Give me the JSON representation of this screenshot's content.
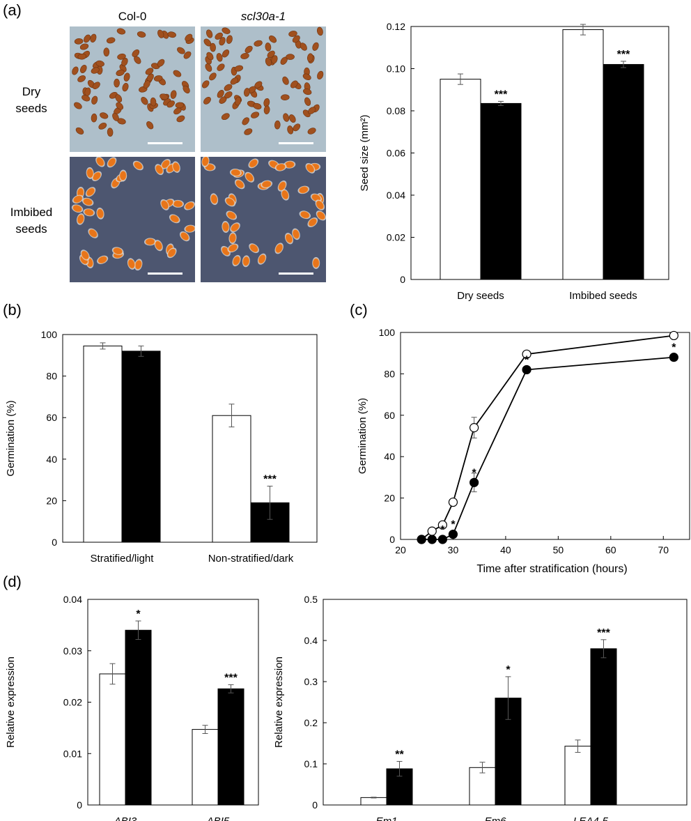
{
  "panel_labels": {
    "a": "(a)",
    "b": "(b)",
    "c": "(c)",
    "d": "(d)"
  },
  "photos": {
    "col_labels": [
      "Col-0",
      "scl30a-1"
    ],
    "row_labels": [
      [
        "Dry",
        "seeds"
      ],
      [
        "Imbibed",
        "seeds"
      ]
    ]
  },
  "chart_data": [
    {
      "id": "a",
      "type": "bar",
      "ylabel": "Seed size (mm²)",
      "xlabel": "",
      "ylim": [
        0,
        0.12
      ],
      "yticks": [
        "0",
        "0.02",
        "0.04",
        "0.06",
        "0.08",
        "0.10",
        "0.12"
      ],
      "categories": [
        "Dry seeds",
        "Imbibed seeds"
      ],
      "series": [
        {
          "values": [
            0.095,
            0.1185
          ],
          "errors": [
            0.0025,
            0.0025
          ],
          "fill": "#ffffff"
        },
        {
          "values": [
            0.0835,
            0.102
          ],
          "errors": [
            0.001,
            0.0015
          ],
          "fill": "#000000"
        }
      ],
      "annotations": [
        "",
        "***",
        "",
        "***"
      ]
    },
    {
      "id": "b",
      "type": "bar",
      "ylabel": "Germination (%)",
      "xlabel": "",
      "ylim": [
        0,
        100
      ],
      "yticks": [
        "0",
        "20",
        "40",
        "60",
        "80",
        "100"
      ],
      "categories": [
        "Stratified/light",
        "Non-stratified/dark"
      ],
      "series": [
        {
          "values": [
            94.5,
            61
          ],
          "errors": [
            1.5,
            5.5
          ],
          "fill": "#ffffff"
        },
        {
          "values": [
            92,
            19
          ],
          "errors": [
            2.5,
            8
          ],
          "fill": "#000000"
        }
      ],
      "annotations": [
        "",
        "",
        "",
        "***"
      ]
    },
    {
      "id": "c",
      "type": "line",
      "ylabel": "Germination (%)",
      "xlabel": "Time after stratification (hours)",
      "xlim": [
        20,
        75
      ],
      "ylim": [
        0,
        100
      ],
      "xticks": [
        "20",
        "30",
        "40",
        "50",
        "60",
        "70"
      ],
      "yticks": [
        "0",
        "20",
        "40",
        "60",
        "80",
        "100"
      ],
      "series": [
        {
          "marker": "open",
          "x": [
            24,
            26,
            28,
            30,
            34,
            44,
            72
          ],
          "y": [
            0,
            4,
            7,
            18,
            54,
            89.5,
            98.5
          ],
          "err": [
            0,
            0,
            0,
            0,
            5,
            0,
            0
          ]
        },
        {
          "marker": "filled",
          "x": [
            24,
            26,
            28,
            30,
            34,
            44,
            72
          ],
          "y": [
            0,
            0,
            0,
            2.5,
            27.5,
            82,
            88
          ],
          "err": [
            0,
            0,
            0,
            0,
            4.5,
            0,
            0
          ],
          "stars": [
            "",
            "",
            "*",
            "*",
            "*",
            "*",
            "*"
          ]
        }
      ]
    },
    {
      "id": "d1",
      "type": "bar",
      "ylabel": "Relative expression",
      "xlabel": "",
      "ylim": [
        0,
        0.04
      ],
      "yticks": [
        "0",
        "0.01",
        "0.02",
        "0.03",
        "0.04"
      ],
      "categories": [
        "ABI3",
        "ABI5"
      ],
      "series": [
        {
          "values": [
            0.0255,
            0.0147
          ],
          "errors": [
            0.002,
            0.0008
          ],
          "fill": "#ffffff"
        },
        {
          "values": [
            0.034,
            0.0226
          ],
          "errors": [
            0.0018,
            0.0008
          ],
          "fill": "#000000"
        }
      ],
      "annotations": [
        "",
        "*",
        "",
        "***"
      ]
    },
    {
      "id": "d2",
      "type": "bar",
      "ylabel": "Relative expression",
      "xlabel": "",
      "ylim": [
        0,
        0.5
      ],
      "yticks": [
        "0",
        "0.1",
        "0.2",
        "0.3",
        "0.4",
        "0.5"
      ],
      "categories": [
        "Em1",
        "Em6",
        "LEA4-5"
      ],
      "series": [
        {
          "values": [
            0.018,
            0.091,
            0.143
          ],
          "errors": [
            0.001,
            0.013,
            0.015
          ],
          "fill": "#ffffff"
        },
        {
          "values": [
            0.088,
            0.26,
            0.38
          ],
          "errors": [
            0.018,
            0.052,
            0.022
          ],
          "fill": "#000000"
        }
      ],
      "annotations": [
        "",
        "**",
        "",
        "*",
        "",
        "***"
      ]
    }
  ]
}
